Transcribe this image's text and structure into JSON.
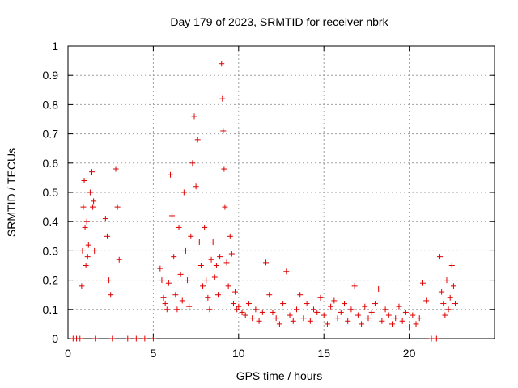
{
  "chart_data": {
    "type": "scatter",
    "title": "Day 179 of 2023, SRMTID for receiver nbrk",
    "xlabel": "GPS time / hours",
    "ylabel": "SRMTID / TECUs",
    "xlim": [
      0,
      25
    ],
    "ylim": [
      0,
      1
    ],
    "xticks": [
      0,
      5,
      10,
      15,
      20
    ],
    "xtick_labels": [
      "0",
      "5",
      "10",
      "15",
      "20"
    ],
    "yticks": [
      0,
      0.1,
      0.2,
      0.3,
      0.4,
      0.5,
      0.6,
      0.7,
      0.8,
      0.9,
      1
    ],
    "ytick_labels": [
      "0",
      "0.1",
      "0.2",
      "0.3",
      "0.4",
      "0.5",
      "0.6",
      "0.7",
      "0.8",
      "0.9",
      "1"
    ],
    "grid": true,
    "marker": "+",
    "marker_color": "#e00000",
    "series": [
      {
        "name": "SRMTID",
        "x": [
          0.3,
          0.5,
          0.7,
          0.8,
          0.85,
          0.9,
          0.95,
          1.0,
          1.05,
          1.1,
          1.15,
          1.2,
          1.3,
          1.4,
          1.45,
          1.5,
          1.55,
          1.6,
          2.2,
          2.3,
          2.4,
          2.5,
          2.6,
          2.8,
          2.9,
          3.0,
          3.5,
          4.0,
          4.5,
          5.0,
          5.4,
          5.5,
          5.6,
          5.7,
          5.8,
          5.9,
          6.0,
          6.1,
          6.2,
          6.3,
          6.4,
          6.5,
          6.6,
          6.7,
          6.8,
          6.9,
          7.0,
          7.1,
          7.2,
          7.3,
          7.4,
          7.5,
          7.6,
          7.7,
          7.8,
          7.9,
          8.0,
          8.1,
          8.2,
          8.3,
          8.4,
          8.5,
          8.6,
          8.7,
          8.8,
          8.9,
          9.0,
          9.05,
          9.1,
          9.15,
          9.2,
          9.3,
          9.4,
          9.5,
          9.6,
          9.7,
          9.8,
          9.9,
          10.0,
          10.2,
          10.4,
          10.6,
          10.8,
          11.0,
          11.2,
          11.4,
          11.6,
          11.8,
          12.0,
          12.2,
          12.4,
          12.6,
          12.8,
          13.0,
          13.2,
          13.4,
          13.6,
          13.8,
          14.0,
          14.2,
          14.4,
          14.6,
          14.8,
          15.0,
          15.2,
          15.4,
          15.6,
          15.8,
          16.0,
          16.2,
          16.4,
          16.6,
          16.8,
          17.0,
          17.2,
          17.4,
          17.6,
          17.8,
          18.0,
          18.2,
          18.4,
          18.6,
          18.8,
          19.0,
          19.2,
          19.4,
          19.6,
          19.8,
          20.0,
          20.2,
          20.4,
          20.6,
          20.8,
          21.0,
          21.3,
          21.6,
          21.8,
          21.9,
          22.0,
          22.1,
          22.2,
          22.3,
          22.4,
          22.5,
          22.6,
          22.7
        ],
        "y": [
          0.0,
          0.0,
          0.0,
          0.18,
          0.3,
          0.45,
          0.54,
          0.38,
          0.25,
          0.4,
          0.28,
          0.32,
          0.5,
          0.57,
          0.45,
          0.47,
          0.3,
          0.0,
          0.41,
          0.35,
          0.2,
          0.15,
          0.0,
          0.58,
          0.45,
          0.27,
          0.0,
          0.0,
          0.0,
          0.0,
          0.24,
          0.2,
          0.14,
          0.12,
          0.1,
          0.19,
          0.56,
          0.42,
          0.28,
          0.15,
          0.1,
          0.38,
          0.22,
          0.13,
          0.5,
          0.3,
          0.2,
          0.11,
          0.35,
          0.6,
          0.76,
          0.52,
          0.68,
          0.33,
          0.25,
          0.18,
          0.38,
          0.2,
          0.14,
          0.1,
          0.27,
          0.33,
          0.21,
          0.25,
          0.15,
          0.28,
          0.94,
          0.82,
          0.71,
          0.58,
          0.45,
          0.26,
          0.18,
          0.35,
          0.29,
          0.12,
          0.16,
          0.1,
          0.11,
          0.09,
          0.08,
          0.12,
          0.07,
          0.1,
          0.06,
          0.09,
          0.26,
          0.15,
          0.09,
          0.07,
          0.05,
          0.12,
          0.23,
          0.08,
          0.06,
          0.1,
          0.15,
          0.07,
          0.12,
          0.06,
          0.1,
          0.09,
          0.14,
          0.08,
          0.05,
          0.11,
          0.13,
          0.07,
          0.09,
          0.12,
          0.06,
          0.1,
          0.18,
          0.08,
          0.05,
          0.11,
          0.07,
          0.09,
          0.12,
          0.17,
          0.06,
          0.1,
          0.08,
          0.05,
          0.07,
          0.11,
          0.06,
          0.09,
          0.04,
          0.08,
          0.05,
          0.07,
          0.19,
          0.13,
          0.0,
          0.0,
          0.28,
          0.16,
          0.12,
          0.08,
          0.2,
          0.1,
          0.14,
          0.25,
          0.18,
          0.12
        ]
      }
    ]
  }
}
